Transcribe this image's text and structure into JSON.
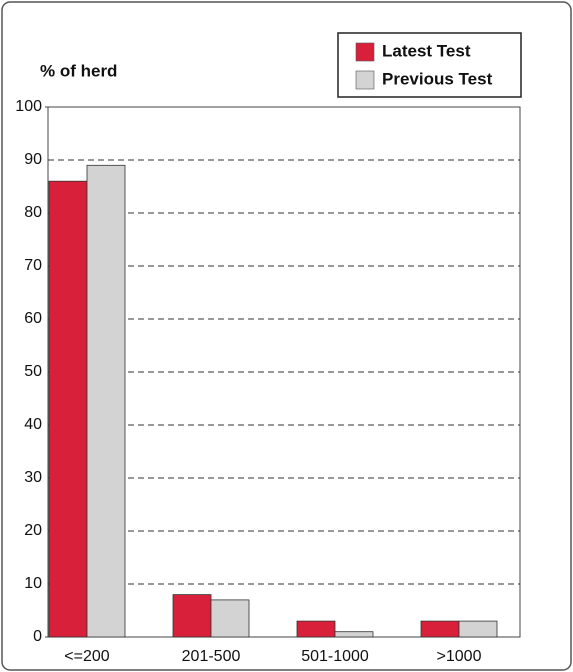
{
  "chart_data": {
    "type": "bar",
    "ylabel": "% of herd",
    "categories": [
      "<=200",
      "201-500",
      "501-1000",
      ">1000"
    ],
    "series": [
      {
        "name": "Latest Test",
        "color": "#d8203a",
        "values": [
          86,
          8,
          3,
          3
        ]
      },
      {
        "name": "Previous Test",
        "color": "#d3d3d3",
        "values": [
          89,
          7,
          1,
          3
        ]
      }
    ],
    "ylim": [
      0,
      100
    ],
    "yticks": [
      0,
      10,
      20,
      30,
      40,
      50,
      60,
      70,
      80,
      90,
      100
    ],
    "grid": true,
    "legend": "top-right"
  }
}
